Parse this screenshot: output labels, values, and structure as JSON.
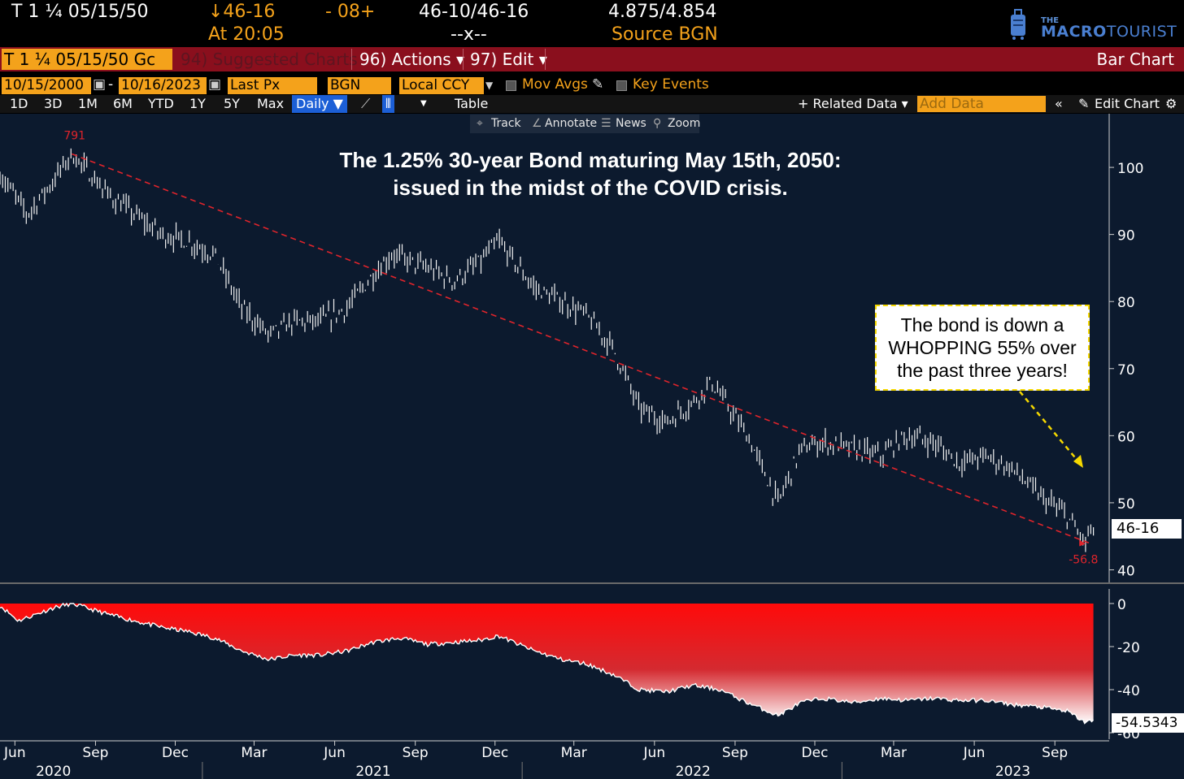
{
  "header": {
    "security": "T 1 ¼ 05/15/50",
    "last": "↓46-16",
    "time": "At 20:05",
    "change": "- 08+",
    "bid_ask": "46-10/46-16",
    "bid_ask_sub": "--x--",
    "yield": "4.875/4.854",
    "source": "Source BGN",
    "logo_small": "THE",
    "logo_macro": "MACRO",
    "logo_tourist": "TOURIST"
  },
  "toolbar": {
    "security_field": "T 1 ¼ 05/15/50 Gc",
    "suggested": "94) Suggested Charts",
    "actions": "96) Actions ▾",
    "edit": "97) Edit ▾",
    "view": "Bar Chart"
  },
  "fields": {
    "start": "10/15/2000",
    "sep": "-",
    "end": "10/16/2023",
    "price": "Last Px",
    "source": "BGN",
    "currency": "Local CCY",
    "mov_avgs": "Mov Avgs",
    "key_events": "Key Events"
  },
  "tabs": [
    "1D",
    "3D",
    "1M",
    "6M",
    "YTD",
    "1Y",
    "5Y",
    "Max"
  ],
  "tab_daily": "Daily ▼",
  "tab_table": "Table",
  "related": "+ Related Data ▾",
  "add_data": "Add Data",
  "edit_chart": "Edit Chart",
  "tools": [
    "Track",
    "Annotate",
    "News",
    "Zoom"
  ],
  "annotation": "The bond is down a WHOPPING 55% over the past three years!",
  "colors": {
    "accent": "#f4a21b",
    "toolbar": "#8a0f1d",
    "plot_bg": "#0c1a2e",
    "trend": "#e0242b",
    "selected": "#1c5fd6"
  },
  "chart_data": [
    {
      "type": "line",
      "title": "The 1.25% 30-year Bond maturing May 15th, 2050:",
      "subtitle": "issued in the midst of the COVID crisis.",
      "x": [
        "2020-05-15",
        "2020-06-15",
        "2020-07-15",
        "2020-08-05",
        "2020-09-15",
        "2020-10-15",
        "2020-11-15",
        "2020-12-15",
        "2021-01-15",
        "2021-02-15",
        "2021-03-18",
        "2021-04-15",
        "2021-05-15",
        "2021-06-15",
        "2021-07-15",
        "2021-08-05",
        "2021-09-15",
        "2021-10-15",
        "2021-11-15",
        "2021-12-05",
        "2022-01-15",
        "2022-02-15",
        "2022-03-15",
        "2022-04-15",
        "2022-05-15",
        "2022-06-15",
        "2022-07-15",
        "2022-08-05",
        "2022-09-15",
        "2022-10-20",
        "2022-11-15",
        "2022-12-10",
        "2023-01-15",
        "2023-02-15",
        "2023-03-15",
        "2023-04-15",
        "2023-05-15",
        "2023-06-15",
        "2023-07-15",
        "2023-08-15",
        "2023-09-15",
        "2023-10-05",
        "2023-10-16"
      ],
      "values": [
        99,
        93,
        98,
        102,
        96,
        93,
        90,
        89,
        87,
        79,
        75,
        77,
        77,
        79,
        84,
        87,
        85,
        83,
        86,
        89,
        82,
        80,
        78,
        73,
        64,
        62,
        65,
        68,
        60,
        50,
        58,
        59,
        58,
        57,
        60,
        59,
        56,
        57,
        55,
        51,
        48,
        44,
        46.5
      ],
      "ylim": [
        38,
        108
      ],
      "yticks": [
        40,
        50,
        60,
        70,
        80,
        90,
        100
      ],
      "xticks": [
        "Jun",
        "Sep",
        "Dec",
        "Mar",
        "Jun",
        "Sep",
        "Dec",
        "Mar",
        "Jun",
        "Sep",
        "Dec",
        "Mar",
        "Jun",
        "Sep"
      ],
      "xtick_dates": [
        "2020-06-01",
        "2020-09-01",
        "2020-12-01",
        "2021-03-01",
        "2021-06-01",
        "2021-09-01",
        "2021-12-01",
        "2022-03-01",
        "2022-06-01",
        "2022-09-01",
        "2022-12-01",
        "2023-03-01",
        "2023-06-01",
        "2023-09-01"
      ],
      "years": [
        "2020",
        "2021",
        "2022",
        "2023"
      ],
      "year_dates": [
        "2020-07-15",
        "2021-07-15",
        "2022-07-15",
        "2023-07-15"
      ],
      "trend": {
        "from": [
          "2020-08-05",
          102
        ],
        "to": [
          "2023-10-10",
          44
        ]
      },
      "high_label": "791",
      "low_label": "-56.8",
      "last_label": "46-16",
      "grid": false
    },
    {
      "type": "area",
      "x": [
        "2020-05-15",
        "2020-06-05",
        "2020-07-15",
        "2020-08-05",
        "2020-09-15",
        "2020-10-15",
        "2020-11-15",
        "2020-12-15",
        "2021-01-15",
        "2021-02-15",
        "2021-03-18",
        "2021-04-15",
        "2021-05-15",
        "2021-06-15",
        "2021-07-15",
        "2021-08-15",
        "2021-09-15",
        "2021-10-15",
        "2021-11-15",
        "2021-12-05",
        "2022-01-15",
        "2022-02-15",
        "2022-03-15",
        "2022-04-15",
        "2022-05-15",
        "2022-06-15",
        "2022-07-15",
        "2022-08-15",
        "2022-09-15",
        "2022-10-20",
        "2022-11-15",
        "2022-12-10",
        "2023-01-15",
        "2023-02-15",
        "2023-03-15",
        "2023-04-15",
        "2023-05-15",
        "2023-06-15",
        "2023-07-15",
        "2023-08-15",
        "2023-09-15",
        "2023-10-05",
        "2023-10-16"
      ],
      "values": [
        -1,
        -8,
        -2,
        0,
        -5,
        -8,
        -11,
        -13,
        -16,
        -22,
        -26,
        -24,
        -24,
        -22,
        -18,
        -16,
        -19,
        -18,
        -17,
        -15,
        -22,
        -26,
        -28,
        -33,
        -40,
        -41,
        -38,
        -40,
        -46,
        -52,
        -46,
        -44,
        -46,
        -44,
        -45,
        -44,
        -45,
        -45,
        -47,
        -48,
        -50,
        -55,
        -54.5343
      ],
      "ylim": [
        -63,
        3
      ],
      "yticks": [
        0,
        -20,
        -40,
        -60
      ],
      "last_label": "-54.5343"
    }
  ]
}
